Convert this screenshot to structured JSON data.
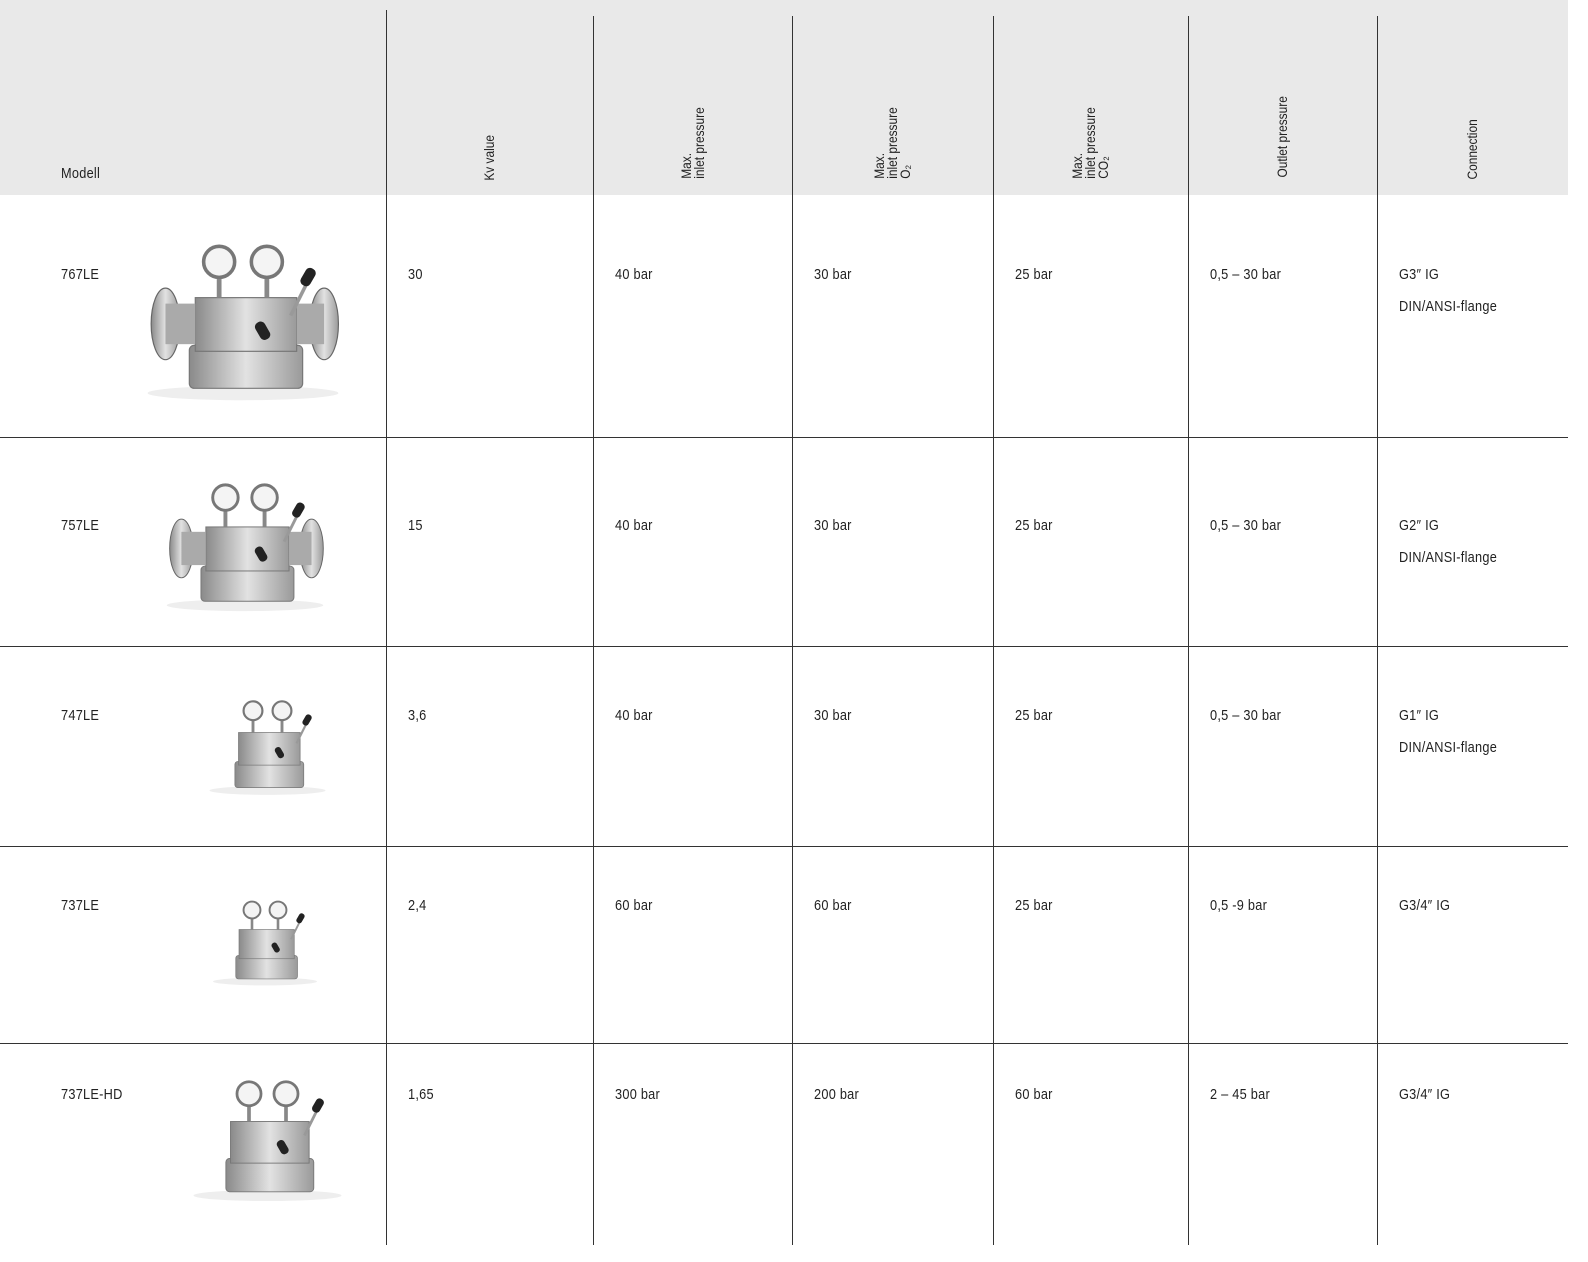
{
  "table": {
    "header": [
      [
        "Modell"
      ],
      [
        "Kv value"
      ],
      [
        "Max.",
        "inlet pressure"
      ],
      [
        "Max.",
        "inlet pressure",
        "O₂"
      ],
      [
        "Max.",
        "inlet pressure",
        "CO₂"
      ],
      [
        "Outlet pressure"
      ],
      [
        "Connection"
      ]
    ],
    "rows": [
      {
        "model": "767LE",
        "cells": [
          [
            "30"
          ],
          [
            "40 bar"
          ],
          [
            "30 bar"
          ],
          [
            "25 bar"
          ],
          [
            "0,5 – 30 bar"
          ],
          [
            "G3″ IG",
            "DIN/ANSI-flange"
          ]
        ]
      },
      {
        "model": "757LE",
        "cells": [
          [
            "15"
          ],
          [
            "40 bar"
          ],
          [
            "30 bar"
          ],
          [
            "25 bar"
          ],
          [
            "0,5 – 30 bar"
          ],
          [
            "G2″ IG",
            "DIN/ANSI-flange"
          ]
        ]
      },
      {
        "model": "747LE",
        "cells": [
          [
            "3,6"
          ],
          [
            "40 bar"
          ],
          [
            "30 bar"
          ],
          [
            "25 bar"
          ],
          [
            "0,5 – 30 bar"
          ],
          [
            "G1″ IG",
            "DIN/ANSI-flange"
          ]
        ]
      },
      {
        "model": "737LE",
        "cells": [
          [
            "2,4"
          ],
          [
            "60 bar"
          ],
          [
            "60 bar"
          ],
          [
            "25 bar"
          ],
          [
            "0,5 -9 bar"
          ],
          [
            "G3/4″ IG"
          ]
        ]
      },
      {
        "model": "737LE-HD",
        "cells": [
          [
            "1,65"
          ],
          [
            "300 bar"
          ],
          [
            "200 bar"
          ],
          [
            "60 bar"
          ],
          [
            "2 – 45 bar"
          ],
          [
            "G3/4″ IG"
          ]
        ]
      }
    ]
  }
}
